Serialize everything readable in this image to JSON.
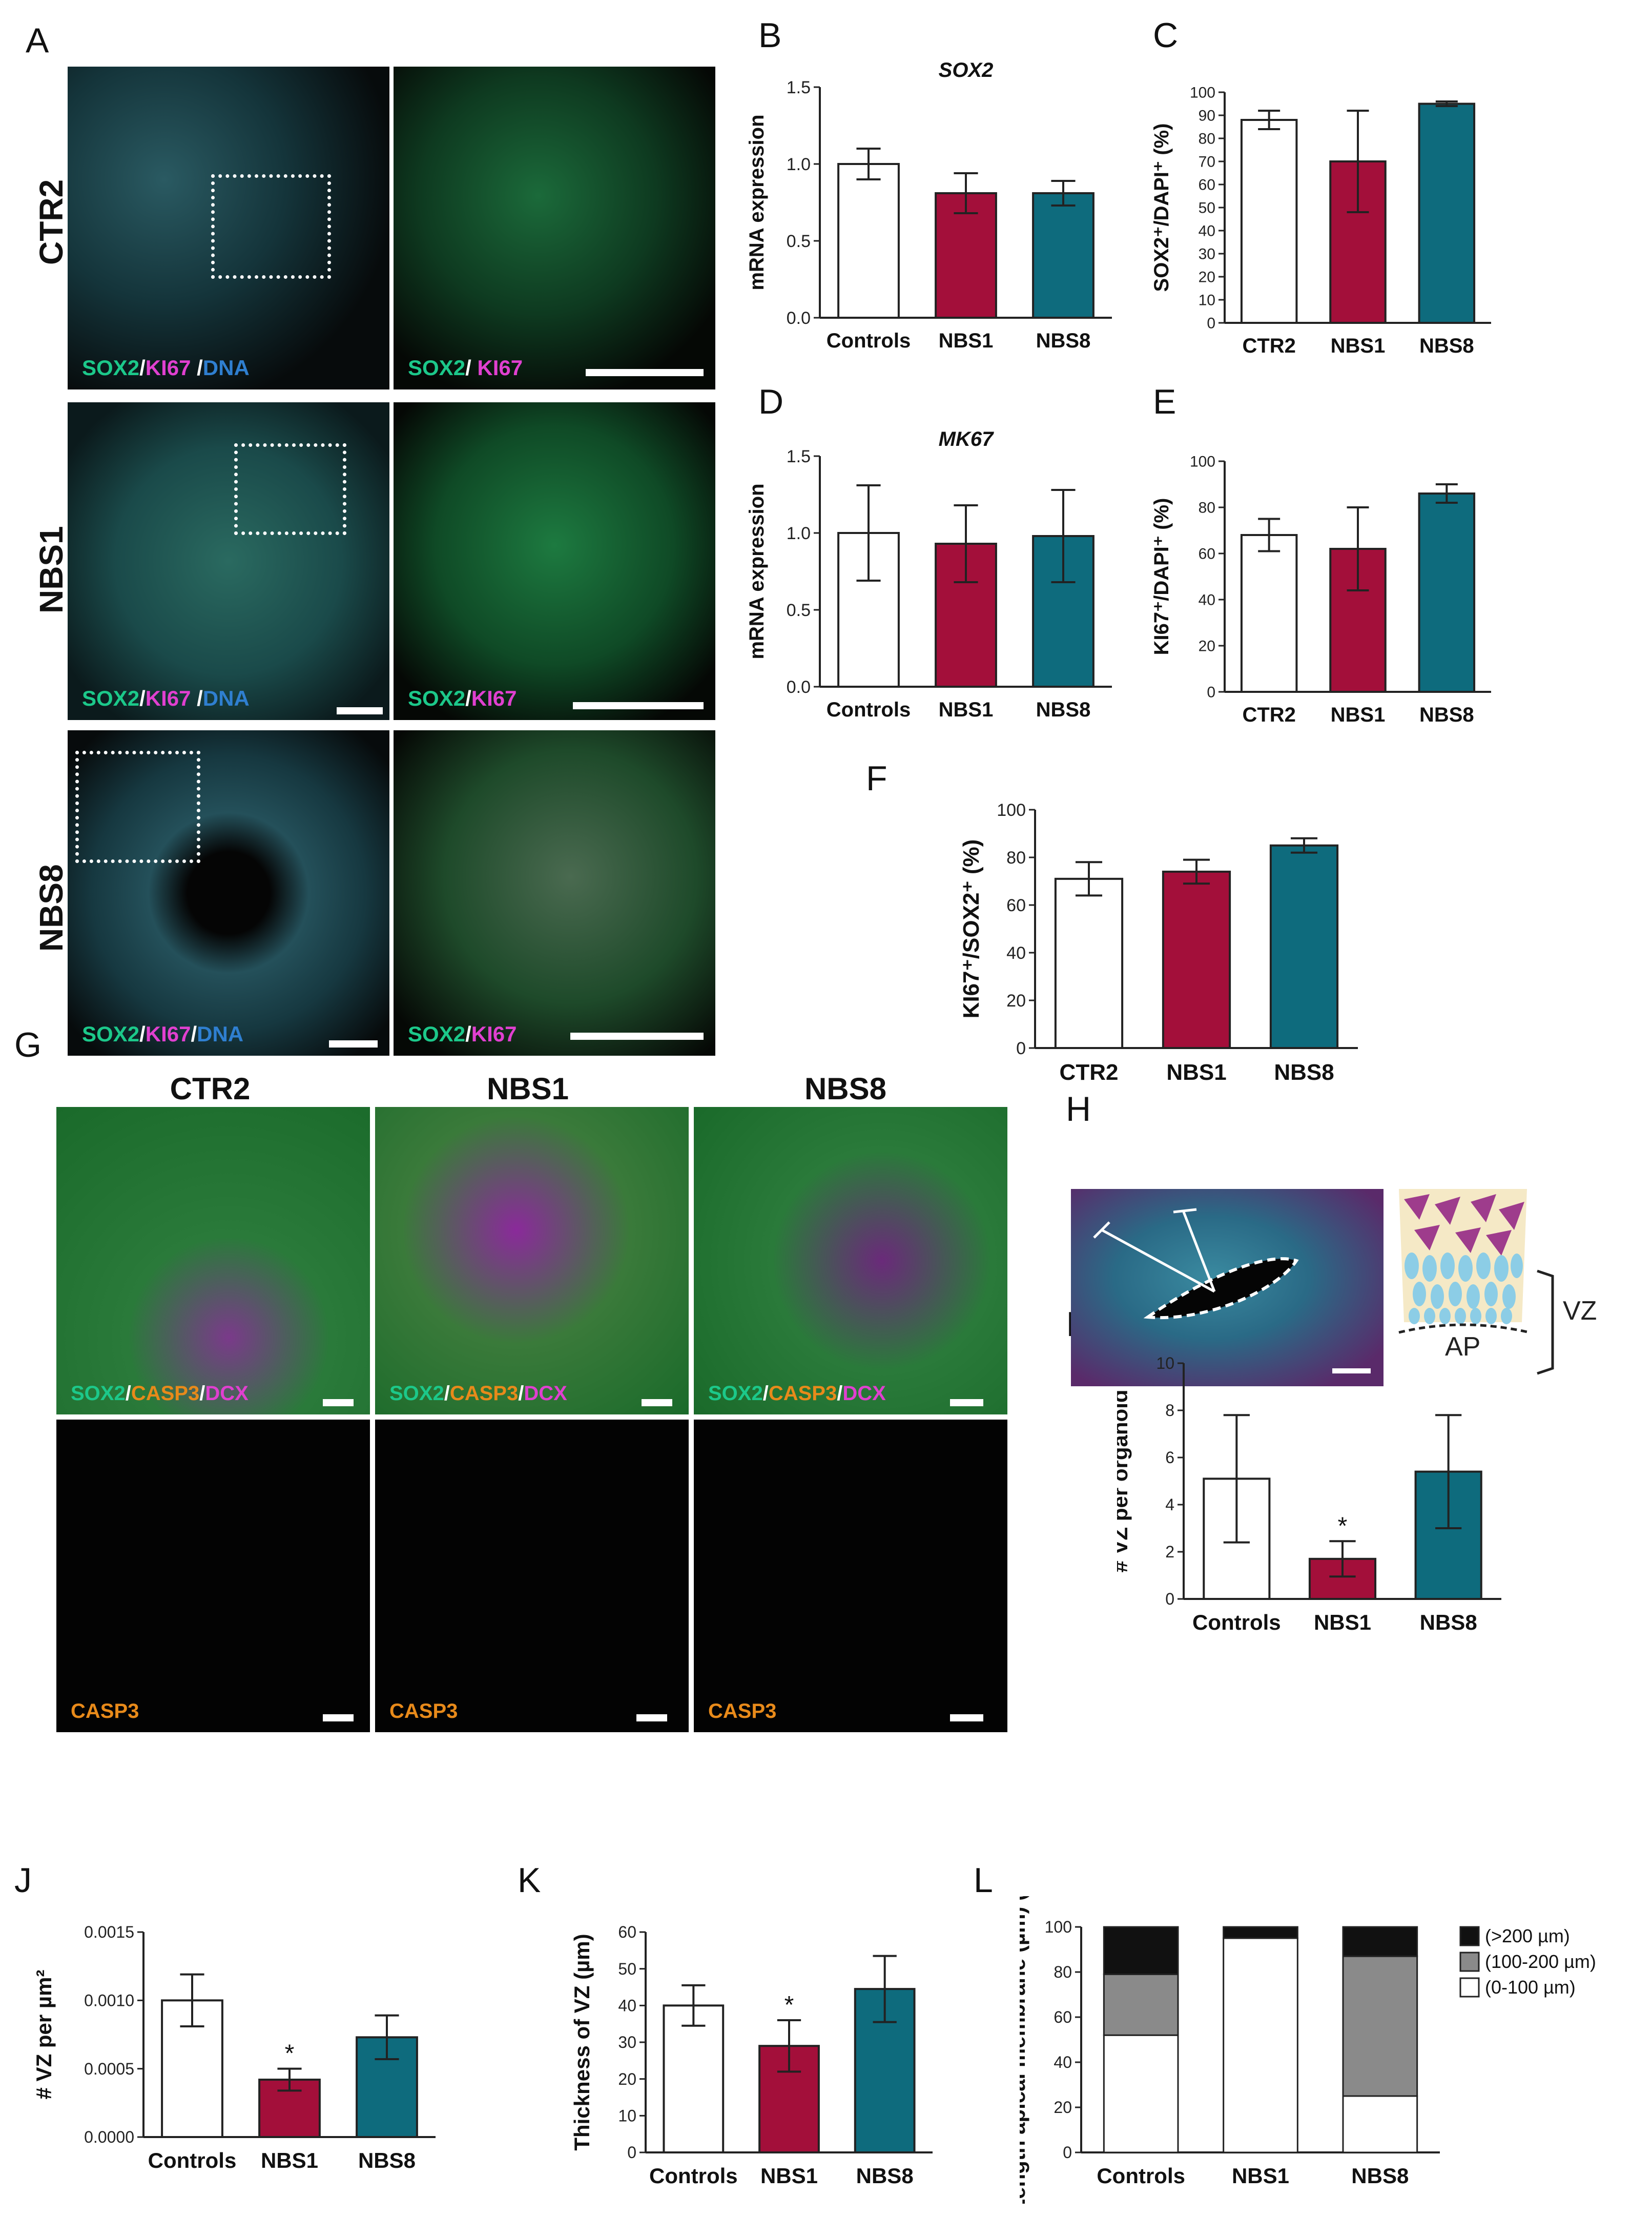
{
  "panel_letters": {
    "A": "A",
    "B": "B",
    "C": "C",
    "D": "D",
    "E": "E",
    "F": "F",
    "G": "G",
    "H": "H",
    "I": "I",
    "J": "J",
    "K": "K",
    "L": "L"
  },
  "panel_a": {
    "rows": [
      {
        "label": "CTR2",
        "left_stain": [
          "SOX2",
          "/",
          "KI67",
          " /",
          "DNA"
        ],
        "right_stain": [
          "SOX2",
          "/ ",
          "KI67"
        ]
      },
      {
        "label": "NBS1",
        "left_stain": [
          "SOX2",
          "/",
          "KI67",
          " /",
          "DNA"
        ],
        "right_stain": [
          "SOX2",
          "/",
          "KI67"
        ]
      },
      {
        "label": "NBS8",
        "left_stain": [
          "SOX2",
          "/",
          "KI67",
          "/",
          "DNA"
        ],
        "right_stain": [
          "SOX2",
          "/",
          "KI67"
        ]
      }
    ]
  },
  "panel_g": {
    "columns": [
      "CTR2",
      "NBS1",
      "NBS8"
    ],
    "top_stain": [
      "SOX2",
      "/",
      "CASP3",
      "/",
      "DCX"
    ],
    "bottom_stain": "CASP3"
  },
  "panel_h": {
    "vz_label": "VZ",
    "ap_label": "AP"
  },
  "colors": {
    "control": "#ffffff",
    "nbs1": "#a30f3a",
    "nbs8": "#0e6b7d",
    "sox2": "#1cc88a",
    "ki67": "#e040d0",
    "dna": "#2f7fd0",
    "casp3": "#e88a1a",
    "dcx": "#e040d0",
    "l_dark": "#111111",
    "l_gray": "#8a8a8a"
  },
  "chart_data": [
    {
      "panel": "B",
      "type": "bar",
      "title": "SOX2",
      "categories": [
        "Controls",
        "NBS1",
        "NBS8"
      ],
      "values": [
        1.0,
        0.81,
        0.81
      ],
      "errors": [
        0.1,
        0.13,
        0.08
      ],
      "ylabel": "mRNA expression",
      "ylim": [
        0,
        1.5
      ],
      "yticks": [
        "0.0",
        "0.5",
        "1.0",
        "1.5"
      ]
    },
    {
      "panel": "C",
      "type": "bar",
      "categories": [
        "CTR2",
        "NBS1",
        "NBS8"
      ],
      "values": [
        88,
        70,
        95
      ],
      "errors": [
        4,
        22,
        1
      ],
      "ylabel": "SOX2⁺/DAPI⁺ (%)",
      "ylim": [
        0,
        100
      ],
      "yticks": [
        "0",
        "10",
        "20",
        "30",
        "40",
        "50",
        "60",
        "70",
        "80",
        "90",
        "100"
      ]
    },
    {
      "panel": "D",
      "type": "bar",
      "title": "MK67",
      "categories": [
        "Controls",
        "NBS1",
        "NBS8"
      ],
      "values": [
        1.0,
        0.93,
        0.98
      ],
      "errors": [
        0.31,
        0.25,
        0.3
      ],
      "ylabel": "mRNA expression",
      "ylim": [
        0,
        1.5
      ],
      "yticks": [
        "0.0",
        "0.5",
        "1.0",
        "1.5"
      ]
    },
    {
      "panel": "E",
      "type": "bar",
      "categories": [
        "CTR2",
        "NBS1",
        "NBS8"
      ],
      "values": [
        68,
        62,
        86
      ],
      "errors": [
        7,
        18,
        4
      ],
      "ylabel": "KI67⁺/DAPI⁺ (%)",
      "ylim": [
        0,
        100
      ],
      "yticks": [
        "0",
        "20",
        "40",
        "60",
        "80",
        "100"
      ]
    },
    {
      "panel": "F",
      "type": "bar",
      "categories": [
        "CTR2",
        "NBS1",
        "NBS8"
      ],
      "values": [
        71,
        74,
        85
      ],
      "errors": [
        7,
        5,
        3
      ],
      "ylabel": "KI67⁺/SOX2⁺ (%)",
      "ylim": [
        0,
        100
      ],
      "yticks": [
        "0",
        "20",
        "40",
        "60",
        "80",
        "100"
      ]
    },
    {
      "panel": "I",
      "type": "bar",
      "categories": [
        "Controls",
        "NBS1",
        "NBS8"
      ],
      "values": [
        5.1,
        1.7,
        5.4
      ],
      "errors": [
        2.7,
        0.75,
        2.4
      ],
      "ylabel": "# VZ per organoid",
      "ylim": [
        0,
        10
      ],
      "yticks": [
        "0",
        "2",
        "4",
        "6",
        "8",
        "10"
      ],
      "annotations": [
        "",
        "*",
        ""
      ]
    },
    {
      "panel": "J",
      "type": "bar",
      "categories": [
        "Controls",
        "NBS1",
        "NBS8"
      ],
      "values": [
        0.001,
        0.00042,
        0.00073
      ],
      "errors": [
        0.00019,
        8e-05,
        0.00016
      ],
      "ylabel": "# VZ per µm²",
      "ylim": [
        0,
        0.0015
      ],
      "yticks": [
        "0.0000",
        "0.0005",
        "0.0010",
        "0.0015"
      ],
      "annotations": [
        "",
        "*",
        ""
      ]
    },
    {
      "panel": "K",
      "type": "bar",
      "categories": [
        "Controls",
        "NBS1",
        "NBS8"
      ],
      "values": [
        40,
        29,
        44.5
      ],
      "errors": [
        5.5,
        7,
        9
      ],
      "ylabel": "Thickness of VZ (µm)",
      "ylim": [
        0,
        60
      ],
      "yticks": [
        "0",
        "10",
        "20",
        "30",
        "40",
        "50",
        "60"
      ],
      "annotations": [
        "",
        "*",
        ""
      ]
    },
    {
      "panel": "L",
      "type": "bar",
      "stacked": true,
      "categories": [
        "Controls",
        "NBS1",
        "NBS8"
      ],
      "ylabel": "Length apical membrane (µm) (%)",
      "ylim": [
        0,
        100
      ],
      "yticks": [
        "0",
        "20",
        "40",
        "60",
        "80",
        "100"
      ],
      "series": [
        {
          "name": "(0-100 µm)",
          "values": [
            52,
            95,
            25
          ]
        },
        {
          "name": "(100-200 µm)",
          "values": [
            27,
            0,
            62
          ]
        },
        {
          "name": "(>200 µm)",
          "values": [
            21,
            5,
            13
          ]
        }
      ],
      "legend_order": [
        "(>200 µm)",
        "(100-200 µm)",
        "(0-100 µm)"
      ],
      "legend": "top-right"
    }
  ]
}
